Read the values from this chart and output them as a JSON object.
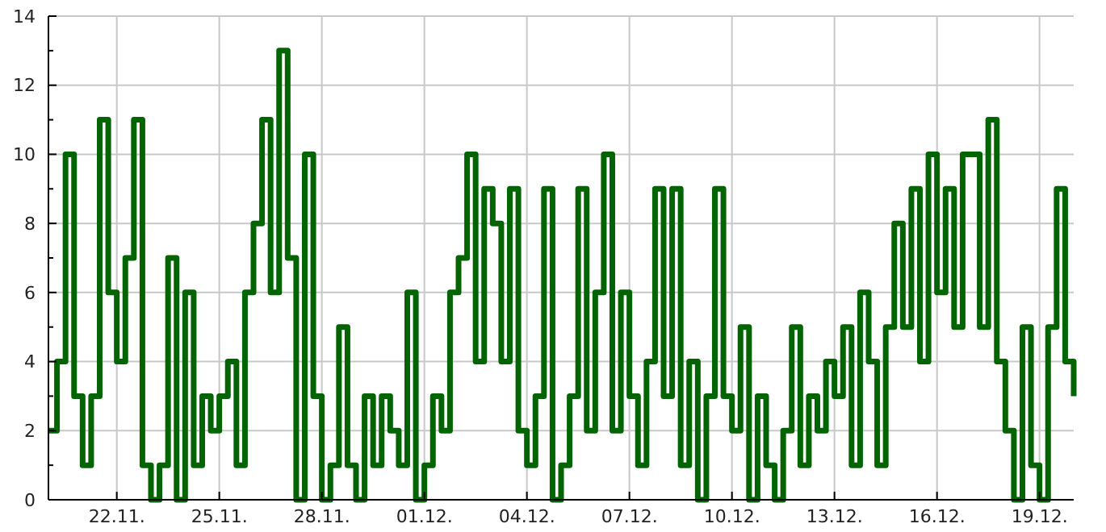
{
  "chart_data": {
    "type": "step",
    "color": "#006400",
    "line_style": "solid",
    "marker": "none",
    "grid": true,
    "xlim": [
      "--11-20",
      "--12-20"
    ],
    "xticks": [
      {
        "value": "--11-22",
        "label": "22.11."
      },
      {
        "value": "--11-25",
        "label": "25.11."
      },
      {
        "value": "--11-28",
        "label": "28.11."
      },
      {
        "value": "--12-01",
        "label": "01.12."
      },
      {
        "value": "--12-04",
        "label": "04.12."
      },
      {
        "value": "--12-07",
        "label": "07.12."
      },
      {
        "value": "--12-10",
        "label": "10.12."
      },
      {
        "value": "--12-13",
        "label": "13.12."
      },
      {
        "value": "--12-16",
        "label": "16.12."
      },
      {
        "value": "--12-19",
        "label": "19.12."
      }
    ],
    "ylim": [
      0,
      14
    ],
    "yticks": [
      0,
      {
        "value": 1,
        "label": null
      },
      2,
      {
        "value": 3,
        "label": null
      },
      4,
      {
        "value": 5,
        "label": null
      },
      6,
      {
        "value": 7,
        "label": null
      },
      8,
      {
        "value": 9,
        "label": null
      },
      10,
      {
        "value": 11,
        "label": null
      },
      12,
      {
        "value": 13,
        "label": null
      },
      14
    ],
    "x": [
      "--11-20T00:00",
      "--11-20T06:00",
      "--11-20T12:00",
      "--11-20T18:00",
      "--11-21T00:00",
      "--11-21T06:00",
      "--11-21T12:00",
      "--11-21T18:00",
      "--11-22T00:00",
      "--11-22T06:00",
      "--11-22T12:00",
      "--11-22T18:00",
      "--11-23T00:00",
      "--11-23T06:00",
      "--11-23T12:00",
      "--11-23T18:00",
      "--11-24T00:00",
      "--11-24T06:00",
      "--11-24T12:00",
      "--11-24T18:00",
      "--11-25T00:00",
      "--11-25T06:00",
      "--11-25T12:00",
      "--11-25T18:00",
      "--11-26T00:00",
      "--11-26T06:00",
      "--11-26T12:00",
      "--11-26T18:00",
      "--11-27T00:00",
      "--11-27T06:00",
      "--11-27T12:00",
      "--11-27T18:00",
      "--11-28T00:00",
      "--11-28T06:00",
      "--11-28T12:00",
      "--11-28T18:00",
      "--11-29T00:00",
      "--11-29T06:00",
      "--11-29T12:00",
      "--11-29T18:00",
      "--11-30T00:00",
      "--11-30T06:00",
      "--11-30T12:00",
      "--11-30T18:00",
      "--12-01T00:00",
      "--12-01T06:00",
      "--12-01T12:00",
      "--12-01T18:00",
      "--12-02T00:00",
      "--12-02T06:00",
      "--12-02T12:00",
      "--12-02T18:00",
      "--12-03T00:00",
      "--12-03T06:00",
      "--12-03T12:00",
      "--12-03T18:00",
      "--12-04T00:00",
      "--12-04T06:00",
      "--12-04T12:00",
      "--12-04T18:00",
      "--12-05T00:00",
      "--12-05T06:00",
      "--12-05T12:00",
      "--12-05T18:00",
      "--12-06T00:00",
      "--12-06T06:00",
      "--12-06T12:00",
      "--12-06T18:00",
      "--12-07T00:00",
      "--12-07T06:00",
      "--12-07T12:00",
      "--12-07T18:00",
      "--12-08T00:00",
      "--12-08T06:00",
      "--12-08T12:00",
      "--12-08T18:00",
      "--12-09T00:00",
      "--12-09T06:00",
      "--12-09T12:00",
      "--12-09T18:00",
      "--12-10T00:00",
      "--12-10T06:00",
      "--12-10T12:00",
      "--12-10T18:00",
      "--12-11T00:00",
      "--12-11T06:00",
      "--12-11T12:00",
      "--12-11T18:00",
      "--12-12T00:00",
      "--12-12T06:00",
      "--12-12T12:00",
      "--12-12T18:00",
      "--12-13T00:00",
      "--12-13T06:00",
      "--12-13T12:00",
      "--12-13T18:00",
      "--12-14T00:00",
      "--12-14T06:00",
      "--12-14T12:00",
      "--12-14T18:00",
      "--12-15T00:00",
      "--12-15T06:00",
      "--12-15T12:00",
      "--12-15T18:00",
      "--12-16T00:00",
      "--12-16T06:00",
      "--12-16T12:00",
      "--12-16T18:00",
      "--12-17T00:00",
      "--12-17T06:00",
      "--12-17T12:00",
      "--12-17T18:00",
      "--12-18T00:00",
      "--12-18T06:00",
      "--12-18T12:00",
      "--12-18T18:00",
      "--12-19T00:00",
      "--12-19T06:00",
      "--12-19T12:00",
      "--12-19T18:00",
      "--12-20T00:00"
    ],
    "values": [
      2,
      4,
      10,
      3,
      1,
      3,
      11,
      6,
      4,
      7,
      11,
      1,
      0,
      1,
      7,
      0,
      6,
      1,
      3,
      2,
      3,
      4,
      1,
      6,
      8,
      11,
      6,
      13,
      7,
      0,
      10,
      3,
      0,
      1,
      5,
      1,
      0,
      3,
      1,
      3,
      2,
      1,
      6,
      0,
      1,
      3,
      2,
      6,
      7,
      10,
      4,
      9,
      8,
      4,
      9,
      2,
      1,
      3,
      9,
      0,
      1,
      3,
      9,
      2,
      6,
      10,
      2,
      6,
      3,
      1,
      4,
      9,
      3,
      9,
      1,
      4,
      0,
      3,
      9,
      3,
      2,
      5,
      0,
      3,
      1,
      0,
      2,
      5,
      1,
      3,
      2,
      4,
      3,
      5,
      1,
      6,
      4,
      1,
      5,
      8,
      5,
      9,
      4,
      10,
      6,
      9,
      5,
      10,
      10,
      5,
      11,
      4,
      2,
      0,
      5,
      1,
      0,
      5,
      9,
      4,
      3
    ]
  }
}
